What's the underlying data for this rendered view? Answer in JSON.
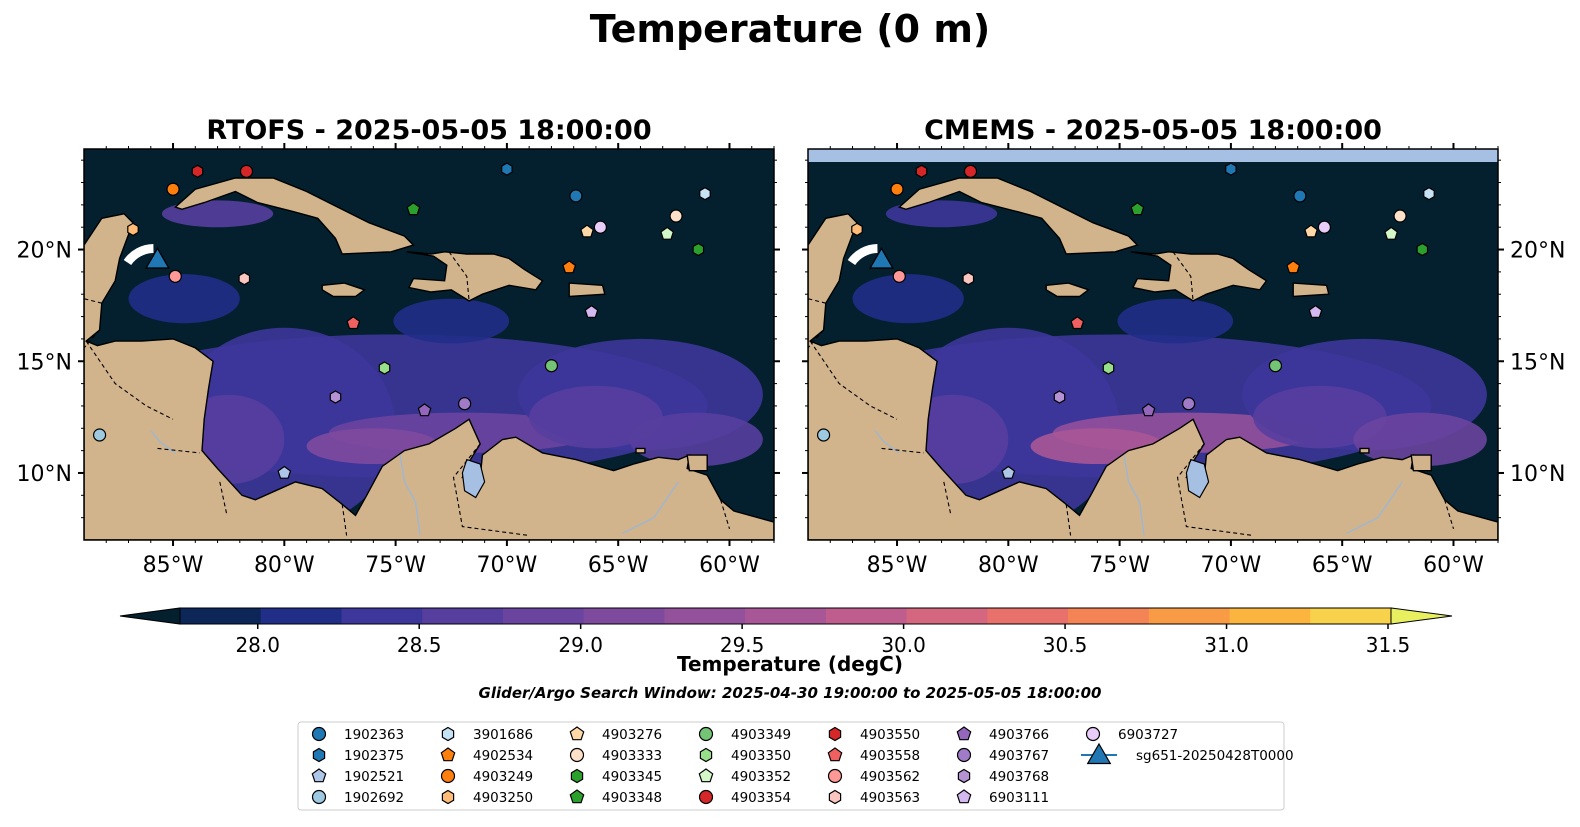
{
  "figure": {
    "title": "Temperature (0 m)",
    "search_window": "Glider/Argo Search Window: 2025-04-30 19:00:00 to 2025-05-05 18:00:00"
  },
  "colors": {
    "land": "#d2b48c",
    "lake": "#a6c0e4",
    "coast": "#000000",
    "river": "#9bb6d6",
    "ocean_scale": [
      "#04202f",
      "#0d2658",
      "#202e88",
      "#3d369b",
      "#563e9f",
      "#6a449f",
      "#7e4a9e",
      "#93509b",
      "#a95696",
      "#bf5d8e",
      "#d5667f",
      "#e9716b",
      "#f48355",
      "#f99a44",
      "#fbb43d",
      "#f7d24a",
      "#e8f05f"
    ]
  },
  "chart_data": [
    {
      "type": "map",
      "title": "RTOFS - 2025-05-05 18:00:00",
      "model": "RTOFS",
      "time": "2025-05-05 18:00:00",
      "xlim": [
        -89,
        -58
      ],
      "ylim": [
        7,
        24.5
      ],
      "xticks": [
        -85,
        -80,
        -75,
        -70,
        -65,
        -60
      ],
      "xtick_labels": [
        "85°W",
        "80°W",
        "75°W",
        "70°W",
        "65°W",
        "60°W"
      ],
      "yticks": [
        10,
        15,
        20
      ],
      "ytick_labels": [
        "10°N",
        "15°N",
        "20°N"
      ],
      "ytick_side": "left"
    },
    {
      "type": "map",
      "title": "CMEMS - 2025-05-05 18:00:00",
      "model": "CMEMS",
      "time": "2025-05-05 18:00:00",
      "xlim": [
        -89,
        -58
      ],
      "ylim": [
        7,
        24.5
      ],
      "xticks": [
        -85,
        -80,
        -75,
        -70,
        -65,
        -60
      ],
      "xtick_labels": [
        "85°W",
        "80°W",
        "75°W",
        "70°W",
        "65°W",
        "60°W"
      ],
      "yticks": [
        10,
        15,
        20
      ],
      "ytick_labels": [
        "10°N",
        "15°N",
        "20°N"
      ],
      "ytick_side": "right"
    }
  ],
  "colorbar": {
    "label": "Temperature (degC)",
    "min": 27.75,
    "max": 31.5,
    "step": 0.25,
    "extend": "both",
    "ticks": [
      28.0,
      28.5,
      29.0,
      29.5,
      30.0,
      30.5,
      31.0,
      31.5
    ],
    "tick_labels": [
      "28.0",
      "28.5",
      "29.0",
      "29.5",
      "30.0",
      "30.5",
      "31.0",
      "31.5"
    ]
  },
  "platforms": [
    {
      "id": "1902363",
      "marker": "circle",
      "color": "#1f77b4",
      "lon": -66.9,
      "lat": 22.4
    },
    {
      "id": "1902375",
      "marker": "hexagon",
      "color": "#1f77b4",
      "lon": -70.0,
      "lat": 23.6
    },
    {
      "id": "1902521",
      "marker": "pentagon",
      "color": "#aec7e8",
      "lon": -80.0,
      "lat": 10.0
    },
    {
      "id": "1902692",
      "marker": "circle",
      "color": "#9ecae1",
      "lon": -88.3,
      "lat": 11.7
    },
    {
      "id": "3901686",
      "marker": "hexagon",
      "color": "#c6e2f5",
      "lon": -61.1,
      "lat": 22.5
    },
    {
      "id": "4902534",
      "marker": "pentagon",
      "color": "#ff7f0e",
      "lon": -67.2,
      "lat": 19.2
    },
    {
      "id": "4903249",
      "marker": "circle",
      "color": "#ff7f0e",
      "lon": -85.0,
      "lat": 22.7
    },
    {
      "id": "4903250",
      "marker": "hexagon",
      "color": "#ffbb78",
      "lon": -86.8,
      "lat": 20.9
    },
    {
      "id": "4903276",
      "marker": "pentagon",
      "color": "#ffd8a8",
      "lon": -66.4,
      "lat": 20.8
    },
    {
      "id": "4903333",
      "marker": "circle",
      "color": "#fde0c8",
      "lon": -62.4,
      "lat": 21.5
    },
    {
      "id": "4903345",
      "marker": "hexagon",
      "color": "#2ca02c",
      "lon": -61.4,
      "lat": 20.0
    },
    {
      "id": "4903348",
      "marker": "pentagon",
      "color": "#2ca02c",
      "lon": -74.2,
      "lat": 21.8
    },
    {
      "id": "4903349",
      "marker": "circle",
      "color": "#74c476",
      "lon": -68.0,
      "lat": 14.8
    },
    {
      "id": "4903350",
      "marker": "hexagon",
      "color": "#98df8a",
      "lon": -75.5,
      "lat": 14.7
    },
    {
      "id": "4903352",
      "marker": "pentagon",
      "color": "#d4f7c9",
      "lon": -62.8,
      "lat": 20.7
    },
    {
      "id": "4903354",
      "marker": "circle",
      "color": "#d62728",
      "lon": -81.7,
      "lat": 23.5
    },
    {
      "id": "4903550",
      "marker": "hexagon",
      "color": "#d62728",
      "lon": -83.9,
      "lat": 23.5
    },
    {
      "id": "4903558",
      "marker": "pentagon",
      "color": "#f06060",
      "lon": -76.9,
      "lat": 16.7
    },
    {
      "id": "4903562",
      "marker": "circle",
      "color": "#ff9896",
      "lon": -84.9,
      "lat": 18.8
    },
    {
      "id": "4903563",
      "marker": "hexagon",
      "color": "#fcc6c0",
      "lon": -81.8,
      "lat": 18.7
    },
    {
      "id": "4903766",
      "marker": "pentagon",
      "color": "#9467bd",
      "lon": -73.7,
      "lat": 12.8
    },
    {
      "id": "4903767",
      "marker": "circle",
      "color": "#a07cc8",
      "lon": -71.9,
      "lat": 13.1
    },
    {
      "id": "4903768",
      "marker": "hexagon",
      "color": "#b492d4",
      "lon": -77.7,
      "lat": 13.4
    },
    {
      "id": "6903111",
      "marker": "pentagon",
      "color": "#d4b8f0",
      "lon": -66.2,
      "lat": 17.2
    },
    {
      "id": "6903727",
      "marker": "circle",
      "color": "#e8ccfa",
      "lon": -65.8,
      "lat": 21.0
    },
    {
      "id": "sg651-20250428T0000",
      "marker": "triangle",
      "color": "#1f77b4",
      "lon": -85.7,
      "lat": 19.6
    }
  ]
}
